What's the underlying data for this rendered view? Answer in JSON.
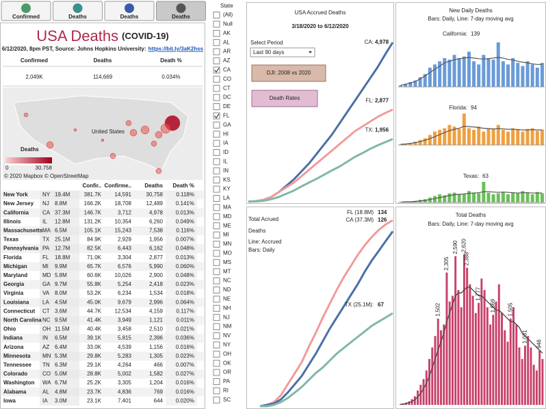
{
  "tabs": [
    "Confirmed",
    "Deaths",
    "Deaths",
    "Deaths"
  ],
  "summary": {
    "title": "USA Deaths",
    "title_note": "(COVID-19)",
    "subtitle": "6/12/2020, 8pm PST, Source: Johns Hopkins University:",
    "link": "https://bit.ly/3aK2hss",
    "kpis": [
      {
        "label": "Confirmed",
        "value": "2,049K"
      },
      {
        "label": "Deaths",
        "value": "114,669"
      },
      {
        "label": "Death %",
        "value": "0.034%"
      }
    ]
  },
  "map": {
    "label": "United States",
    "legend_title": "Deaths",
    "legend_min": "0",
    "legend_max": "30.758",
    "credit": "© 2020 Mapbox © OpenStreetMap"
  },
  "table": {
    "columns": [
      "Confir..",
      "Confirme..",
      "Deaths",
      "Death %"
    ],
    "rows": [
      [
        "New York",
        "NY",
        "19.4M",
        "381.7K",
        "14,591",
        "30,758",
        "0.118%"
      ],
      [
        "New Jersey",
        "NJ",
        "8.8M",
        "166.2K",
        "18,708",
        "12,489",
        "0.141%"
      ],
      [
        "California",
        "CA",
        "37.3M",
        "146.7K",
        "3,712",
        "4,978",
        "0.013%"
      ],
      [
        "Illinois",
        "IL",
        "12.8M",
        "131.2K",
        "10,354",
        "6,260",
        "0.049%"
      ],
      [
        "Massachusetts",
        "MA",
        "6.5M",
        "105.1K",
        "15,243",
        "7,538",
        "0.116%"
      ],
      [
        "Texas",
        "TX",
        "25.1M",
        "84.9K",
        "2,929",
        "1,956",
        "0.007%"
      ],
      [
        "Pennsylvania",
        "PA",
        "12.7M",
        "82.5K",
        "6,443",
        "6,162",
        "0.048%"
      ],
      [
        "Florida",
        "FL",
        "18.8M",
        "71.0K",
        "3,304",
        "2,877",
        "0.013%"
      ],
      [
        "Michigan",
        "MI",
        "9.9M",
        "65.7K",
        "6,576",
        "5,990",
        "0.060%"
      ],
      [
        "Maryland",
        "MD",
        "5.8M",
        "60.6K",
        "10,026",
        "2,900",
        "0.048%"
      ],
      [
        "Georgia",
        "GA",
        "9.7M",
        "55.8K",
        "5,254",
        "2,418",
        "0.023%"
      ],
      [
        "Virginia",
        "VA",
        "8.0M",
        "53.2K",
        "6,234",
        "1,534",
        "0.018%"
      ],
      [
        "Louisiana",
        "LA",
        "4.5M",
        "45.0K",
        "9,679",
        "2,996",
        "0.064%"
      ],
      [
        "Connecticut",
        "CT",
        "3.6M",
        "44.7K",
        "12,534",
        "4,159",
        "0.117%"
      ],
      [
        "North Carolina",
        "NC",
        "9.5M",
        "41.4K",
        "3,949",
        "1,121",
        "0.011%"
      ],
      [
        "Ohio",
        "OH",
        "11.5M",
        "40.4K",
        "3,458",
        "2,510",
        "0.021%"
      ],
      [
        "Indiana",
        "IN",
        "6.5M",
        "39.1K",
        "5,815",
        "2,396",
        "0.036%"
      ],
      [
        "Arizona",
        "AZ",
        "6.4M",
        "33.0K",
        "4,539",
        "1,156",
        "0.016%"
      ],
      [
        "Minnesota",
        "MN",
        "5.3M",
        "29.8K",
        "5,283",
        "1,305",
        "0.023%"
      ],
      [
        "Tennessee",
        "TN",
        "6.3M",
        "29.1K",
        "4,264",
        "466",
        "0.007%"
      ],
      [
        "Colorado",
        "CO",
        "5.0M",
        "28.8K",
        "5,002",
        "1,582",
        "0.027%"
      ],
      [
        "Washington",
        "WA",
        "6.7M",
        "25.2K",
        "3,305",
        "1,204",
        "0.016%"
      ],
      [
        "Alabama",
        "AL",
        "4.8M",
        "23.7K",
        "4,836",
        "769",
        "0.016%"
      ],
      [
        "Iowa",
        "IA",
        "3.0M",
        "23.1K",
        "7,401",
        "644",
        "0.020%"
      ]
    ]
  },
  "filter": {
    "title": "State",
    "items": [
      "(All)",
      "Null",
      "AK",
      "AL",
      "AR",
      "AZ",
      "CA",
      "CO",
      "CT",
      "DC",
      "DE",
      "FL",
      "GA",
      "HI",
      "IA",
      "ID",
      "IL",
      "IN",
      "KS",
      "KY",
      "LA",
      "MA",
      "MD",
      "ME",
      "MI",
      "MN",
      "MO",
      "MS",
      "MT",
      "NC",
      "ND",
      "NE",
      "NH",
      "NJ",
      "NM",
      "NV",
      "NY",
      "OH",
      "OK",
      "OR",
      "PA",
      "RI",
      "SC"
    ],
    "checked": [
      "CA",
      "FL"
    ]
  },
  "accrued": {
    "title": "USA Accrued Deaths",
    "subtitle": "3/18/2020 to 6/12/2020",
    "select_label": "Select Period",
    "select_value": "Last 90 days",
    "buttons": [
      "DJI: 2008 vs 2020",
      "Death Rates"
    ],
    "series": [
      {
        "name": "CA:",
        "color": "#4a6fa5",
        "value_label": "4,978",
        "values": [
          5,
          20,
          60,
          150,
          300,
          500,
          700,
          950,
          1200,
          1500,
          1800,
          2100,
          2450,
          2800,
          3150,
          3500,
          3850,
          4200,
          4600,
          4978
        ]
      },
      {
        "name": "FL:",
        "color": "#f29a9a",
        "value_label": "2,877",
        "values": [
          5,
          20,
          60,
          150,
          300,
          450,
          600,
          800,
          1000,
          1200,
          1400,
          1600,
          1800,
          2000,
          2200,
          2350,
          2500,
          2650,
          2770,
          2877
        ]
      },
      {
        "name": "TX:",
        "color": "#7fb8a8",
        "value_label": "1,956",
        "values": [
          5,
          10,
          30,
          80,
          150,
          250,
          350,
          480,
          600,
          720,
          850,
          980,
          1100,
          1250,
          1400,
          1520,
          1650,
          1760,
          1860,
          1956
        ]
      }
    ]
  },
  "total_accrued": {
    "title": [
      "Total Acrued",
      "Deaths"
    ],
    "legend": [
      "Line: Accrued",
      "Bars: Daily"
    ],
    "series": [
      {
        "name": "FL (18.8M)",
        "color": "#f29a9a",
        "value_label": "134",
        "values": [
          0,
          1,
          3,
          8,
          16,
          24,
          32,
          43,
          53,
          64,
          74,
          84,
          93,
          101,
          109,
          116,
          122,
          127,
          131,
          134
        ]
      },
      {
        "name": "CA (37.3M)",
        "color": "#4a6fa5",
        "value_label": "126",
        "values": [
          0,
          1,
          2,
          5,
          10,
          16,
          22,
          30,
          38,
          47,
          56,
          64,
          72,
          80,
          88,
          97,
          105,
          112,
          119,
          126
        ]
      },
      {
        "name": "TX (25.1M):",
        "color": "#7fb8a8",
        "value_label": "67",
        "values": [
          0,
          0,
          1,
          3,
          6,
          10,
          14,
          19,
          24,
          28,
          33,
          38,
          42,
          46,
          50,
          54,
          58,
          61,
          64,
          67
        ]
      }
    ]
  },
  "daily": {
    "title": "New Daily Deaths",
    "subtitle": "Bars: Daily, Line: 7-day moving avg",
    "panels": [
      {
        "name": "California:",
        "value_label": "139",
        "color": "#6a9bd8",
        "values": [
          5,
          10,
          15,
          20,
          30,
          40,
          60,
          70,
          80,
          90,
          85,
          100,
          90,
          95,
          110,
          80,
          70,
          100,
          90,
          85,
          139,
          80,
          70,
          90,
          75,
          65,
          80,
          70,
          60,
          75
        ],
        "avg": [
          5,
          8,
          12,
          17,
          25,
          34,
          45,
          55,
          65,
          75,
          80,
          85,
          88,
          90,
          92,
          90,
          88,
          87,
          88,
          90,
          92,
          90,
          86,
          84,
          80,
          77,
          75,
          72,
          70,
          70
        ]
      },
      {
        "name": "Florida:",
        "value_label": "94",
        "color": "#f0a040",
        "values": [
          2,
          4,
          6,
          10,
          15,
          20,
          30,
          40,
          45,
          50,
          60,
          55,
          48,
          94,
          50,
          45,
          55,
          40,
          50,
          48,
          60,
          45,
          40,
          50,
          45,
          40,
          48,
          50,
          42,
          46
        ],
        "avg": [
          2,
          3,
          5,
          7,
          10,
          14,
          19,
          25,
          31,
          37,
          43,
          47,
          50,
          56,
          55,
          54,
          52,
          50,
          49,
          48,
          49,
          48,
          47,
          47,
          46,
          45,
          45,
          46,
          45,
          45
        ]
      },
      {
        "name": "Texas:",
        "value_label": "63",
        "color": "#6cbf5a",
        "values": [
          1,
          2,
          3,
          5,
          8,
          10,
          15,
          20,
          25,
          22,
          28,
          30,
          26,
          25,
          35,
          30,
          28,
          63,
          30,
          25,
          28,
          32,
          25,
          30,
          28,
          35,
          30,
          25,
          32,
          28
        ],
        "avg": [
          1,
          2,
          2,
          3,
          5,
          6,
          9,
          12,
          15,
          18,
          21,
          24,
          25,
          26,
          28,
          29,
          30,
          33,
          33,
          32,
          31,
          32,
          31,
          30,
          29,
          30,
          30,
          29,
          29,
          29
        ]
      }
    ]
  },
  "total": {
    "title": "Total Deaths",
    "subtitle": "Bars: Daily, Line: 7-day moving avg",
    "color": "#c8426a",
    "values": [
      10,
      20,
      40,
      60,
      100,
      150,
      250,
      350,
      450,
      600,
      800,
      1000,
      1200,
      1502,
      1300,
      1400,
      2305,
      1800,
      1900,
      2590,
      2000,
      1700,
      2620,
      2388,
      2100,
      1900,
      1600,
      1777,
      2200,
      2000,
      1700,
      1400,
      1569,
      1800,
      2100,
      1600,
      1300,
      1100,
      1505,
      1700,
      1400,
      1000,
      800,
      1031,
      1200,
      1000,
      700,
      600,
      946,
      800
    ],
    "value_labels": [
      null,
      null,
      null,
      null,
      null,
      null,
      null,
      null,
      null,
      null,
      null,
      null,
      null,
      "1,502",
      null,
      null,
      "2,305",
      null,
      null,
      "2,590",
      null,
      null,
      "2,620",
      "2,388",
      null,
      null,
      null,
      "1,777",
      null,
      null,
      null,
      null,
      "1,569",
      null,
      null,
      null,
      null,
      null,
      "1,505",
      null,
      null,
      null,
      null,
      "1,031",
      null,
      null,
      null,
      null,
      "946",
      null
    ],
    "avg": [
      10,
      15,
      25,
      40,
      60,
      90,
      140,
      200,
      280,
      380,
      500,
      650,
      800,
      950,
      1100,
      1250,
      1450,
      1600,
      1750,
      1900,
      1950,
      1950,
      2000,
      2050,
      2050,
      2000,
      1950,
      1900,
      1900,
      1850,
      1800,
      1750,
      1700,
      1650,
      1650,
      1600,
      1550,
      1500,
      1450,
      1450,
      1400,
      1350,
      1250,
      1200,
      1150,
      1100,
      1050,
      1000,
      950,
      900
    ]
  }
}
